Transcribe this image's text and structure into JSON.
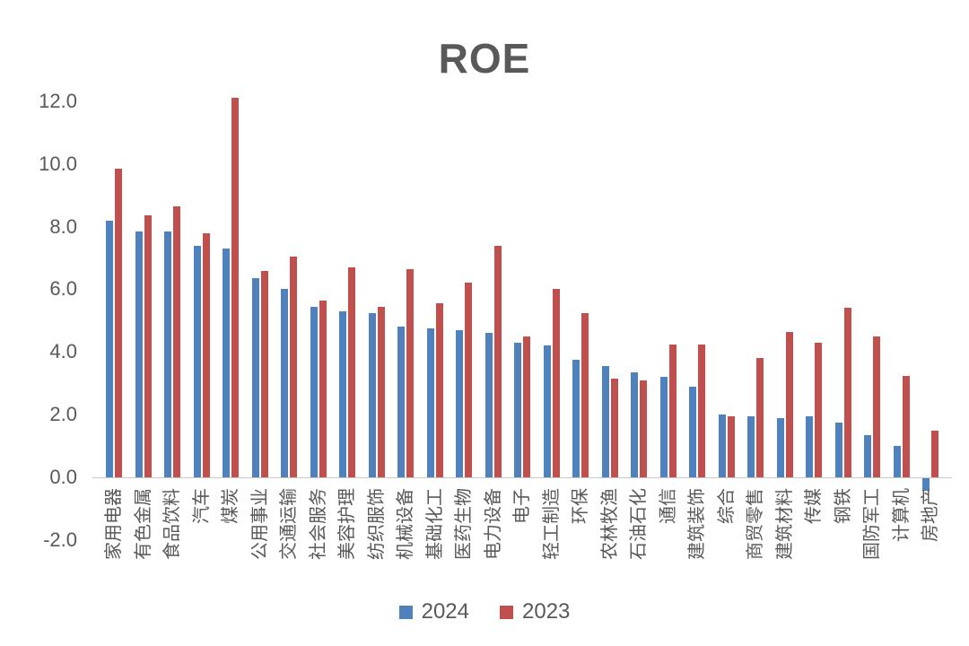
{
  "chart_data": {
    "type": "bar",
    "title": "ROE",
    "categories": [
      "家用电器",
      "有色金属",
      "食品饮料",
      "汽车",
      "煤炭",
      "公用事业",
      "交通运输",
      "社会服务",
      "美容护理",
      "纺织服饰",
      "机械设备",
      "基础化工",
      "医药生物",
      "电力设备",
      "电子",
      "轻工制造",
      "环保",
      "农林牧渔",
      "石油石化",
      "通信",
      "建筑装饰",
      "综合",
      "商贸零售",
      "建筑材料",
      "传媒",
      "钢铁",
      "国防军工",
      "计算机",
      "房地产"
    ],
    "series": [
      {
        "name": "2024",
        "color": "#4F81BD",
        "values": [
          8.2,
          7.85,
          7.85,
          7.4,
          7.3,
          6.35,
          6.0,
          5.45,
          5.3,
          5.25,
          4.8,
          4.75,
          4.7,
          4.6,
          4.3,
          4.2,
          3.75,
          3.55,
          3.35,
          3.2,
          2.9,
          2.0,
          1.95,
          1.9,
          1.95,
          1.75,
          1.35,
          1.0,
          -0.4
        ]
      },
      {
        "name": "2023",
        "color": "#C0504D",
        "values": [
          9.85,
          8.35,
          8.65,
          7.8,
          12.1,
          6.6,
          7.05,
          5.65,
          6.7,
          5.45,
          6.65,
          5.55,
          6.2,
          7.4,
          4.5,
          6.0,
          5.25,
          3.15,
          3.1,
          4.25,
          4.25,
          1.95,
          3.8,
          4.65,
          4.3,
          5.4,
          4.5,
          3.25,
          1.5
        ]
      }
    ],
    "ylim": [
      -2.0,
      12.0
    ],
    "yticks": [
      12.0,
      10.0,
      8.0,
      6.0,
      4.0,
      2.0,
      0.0,
      -2.0
    ],
    "ytick_labels": [
      "12.0",
      "10.0",
      "8.0",
      "6.0",
      "4.0",
      "2.0",
      "0.0",
      "-2.0"
    ],
    "grid": false,
    "legend_position": "bottom",
    "background_color": "#ffffff",
    "axis_line_color": "#c9c9c9",
    "text_color": "#595959"
  }
}
